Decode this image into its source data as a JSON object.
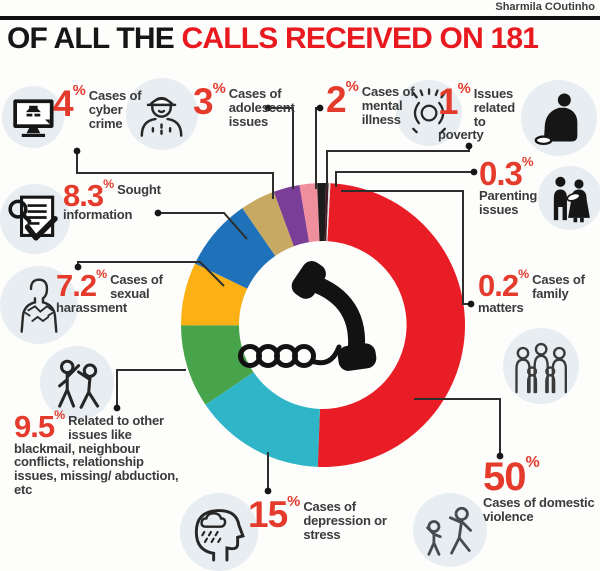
{
  "credit": "Sharmila COutinho",
  "title": {
    "black": "OF ALL THE ",
    "red": "CALLS RECEIVED ON 181"
  },
  "chart_data": {
    "type": "pie",
    "subtype": "donut",
    "title": "OF ALL THE CALLS RECEIVED ON 181",
    "start_angle_deg": 3,
    "direction": "clockwise",
    "center_icon": "telephone-handset-icon",
    "series": [
      {
        "label": "Cases of domestic violence",
        "value": 50,
        "color": "#e91d25"
      },
      {
        "label": "Cases of depression or stress",
        "value": 15,
        "color": "#2fb5c8"
      },
      {
        "label": "Related to other issues like blackmail, neighbour conflicts, relationship issues, missing/abduction, etc",
        "value": 9.5,
        "color": "#47a44b"
      },
      {
        "label": "Cases of sexual harassment",
        "value": 7.2,
        "color": "#fbb016"
      },
      {
        "label": "Sought information",
        "value": 8.3,
        "color": "#1f72b9"
      },
      {
        "label": "Cases of cyber crime",
        "value": 4,
        "color": "#c7a961"
      },
      {
        "label": "Cases of adolescent issues",
        "value": 3,
        "color": "#7a3e98"
      },
      {
        "label": "Cases of mental illness",
        "value": 2,
        "color": "#ef8e9c"
      },
      {
        "label": "Issues related to poverty",
        "value": 1,
        "color": "#1b1b1b"
      },
      {
        "label": "Parenting issues",
        "value": 0.3,
        "color": "#451722"
      },
      {
        "label": "Cases of family matters",
        "value": 0.2,
        "color": "#e3e3e3"
      }
    ]
  },
  "callouts": {
    "cyber": {
      "pct": "4",
      "unit": "%",
      "text": "Cases of cyber crime",
      "icon": "hacker-monitor-icon"
    },
    "adolescent": {
      "pct": "3",
      "unit": "%",
      "text": "Cases of adolescent issues",
      "icon": "boy-with-cap-icon"
    },
    "mental": {
      "pct": "2",
      "unit": "%",
      "text": "Cases of mental illness",
      "icon": "head-in-hands-icon"
    },
    "poverty": {
      "pct": "1",
      "unit": "%",
      "text": "Issues related to poverty",
      "icon": "beggar-icon"
    },
    "parenting": {
      "pct": "0.3",
      "unit": "%",
      "text": "Parenting issues",
      "icon": "parents-with-baby-icon"
    },
    "family": {
      "pct": "0.2",
      "unit": "%",
      "text": "Cases of family matters",
      "icon": "family-group-icon"
    },
    "sought": {
      "pct": "8.3",
      "unit": "%",
      "text": "Sought information",
      "icon": "document-search-check-icon"
    },
    "harassment": {
      "pct": "7.2",
      "unit": "%",
      "text": "Cases of sexual harassment",
      "icon": "woman-figure-icon"
    },
    "other": {
      "pct": "9.5",
      "unit": "%",
      "text": "Related to other issues like blackmail, neighbour conflicts, relationship issues, missing/ abduction, etc",
      "icon": "people-fighting-icon"
    },
    "depression": {
      "pct": "15",
      "unit": "%",
      "text": "Cases of depression or stress",
      "icon": "sad-head-rain-icon"
    },
    "domestic": {
      "pct": "50",
      "unit": "%",
      "text": "Cases of domestic violence",
      "icon": "domestic-violence-icon"
    }
  }
}
